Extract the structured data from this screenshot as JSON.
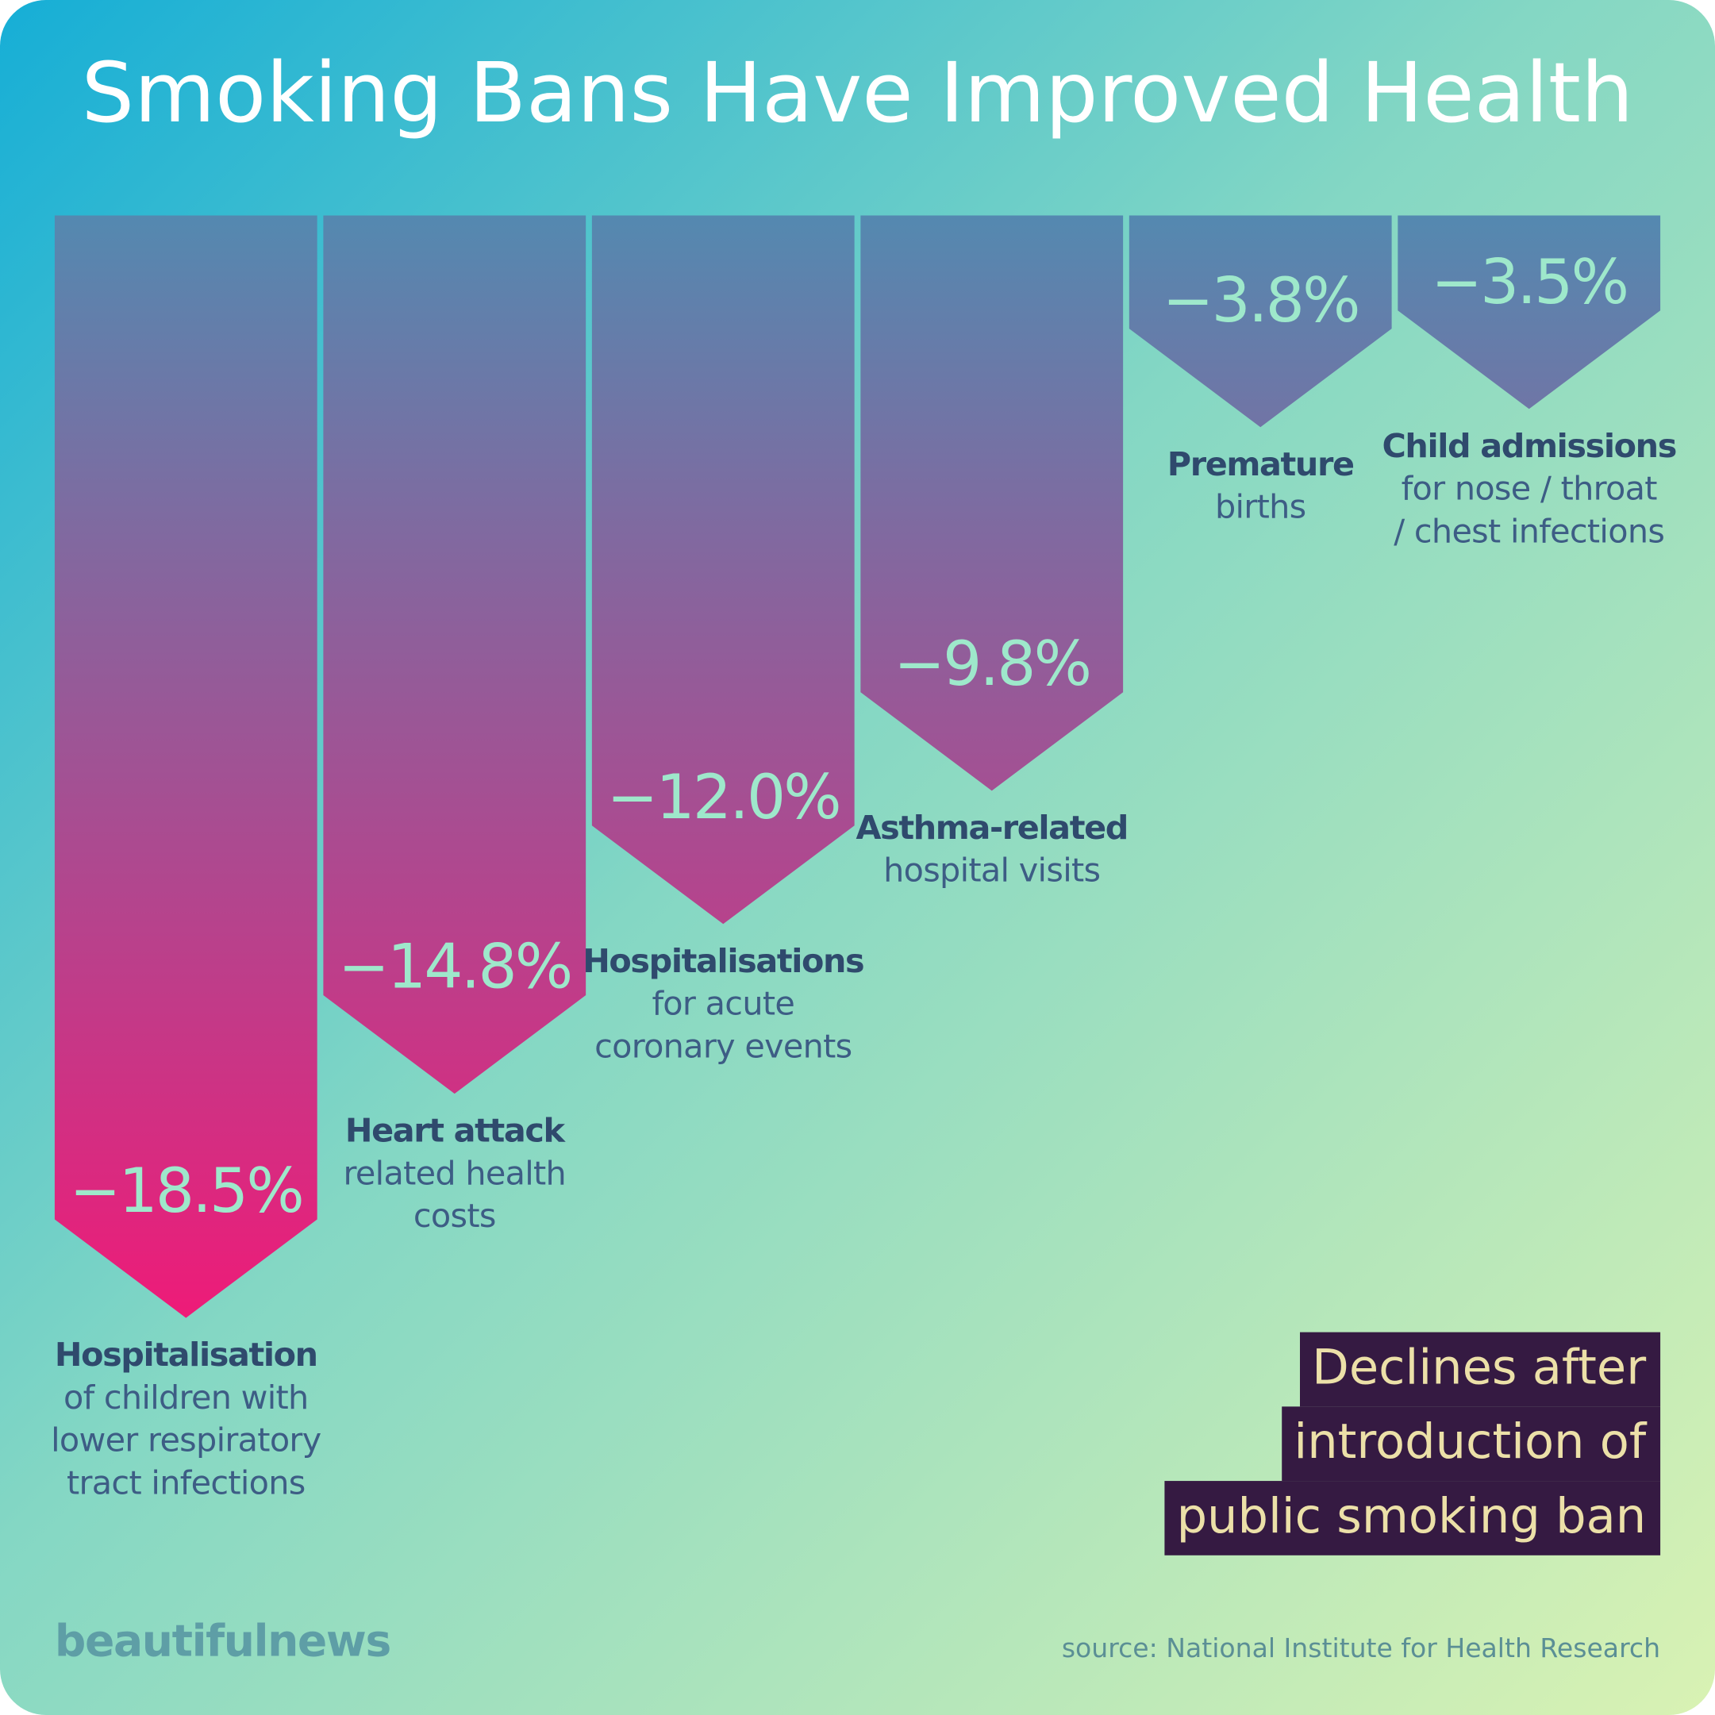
{
  "chart_data": {
    "type": "arrow-bar",
    "title": "Smoking Bans Have Improved Health",
    "categories": [
      "Hospitalisation",
      "Heart attack",
      "Hospitalisations",
      "Asthma-related",
      "Premature",
      "Child admissions"
    ],
    "category_details": [
      [
        "of children with",
        "lower respiratory",
        "tract infections"
      ],
      [
        "related health",
        "costs"
      ],
      [
        "for acute",
        "coronary events"
      ],
      [
        "hospital visits"
      ],
      [
        "births"
      ],
      [
        "for nose / throat",
        "/ chest infections"
      ]
    ],
    "values": [
      -18.5,
      -14.8,
      -12.0,
      -9.8,
      -3.8,
      -3.5
    ],
    "value_labels": [
      "−18.5%",
      "−14.8%",
      "−12.0%",
      "−9.8%",
      "−3.8%",
      "−3.5%"
    ],
    "ylim": [
      0,
      -20
    ],
    "colors": [
      "#5489b0",
      "#ee1b78"
    ],
    "note": [
      "Declines after",
      "introduction of",
      "public smoking ban"
    ],
    "brand": "beautifulnews",
    "source": "source: National Institute for Health Research"
  }
}
